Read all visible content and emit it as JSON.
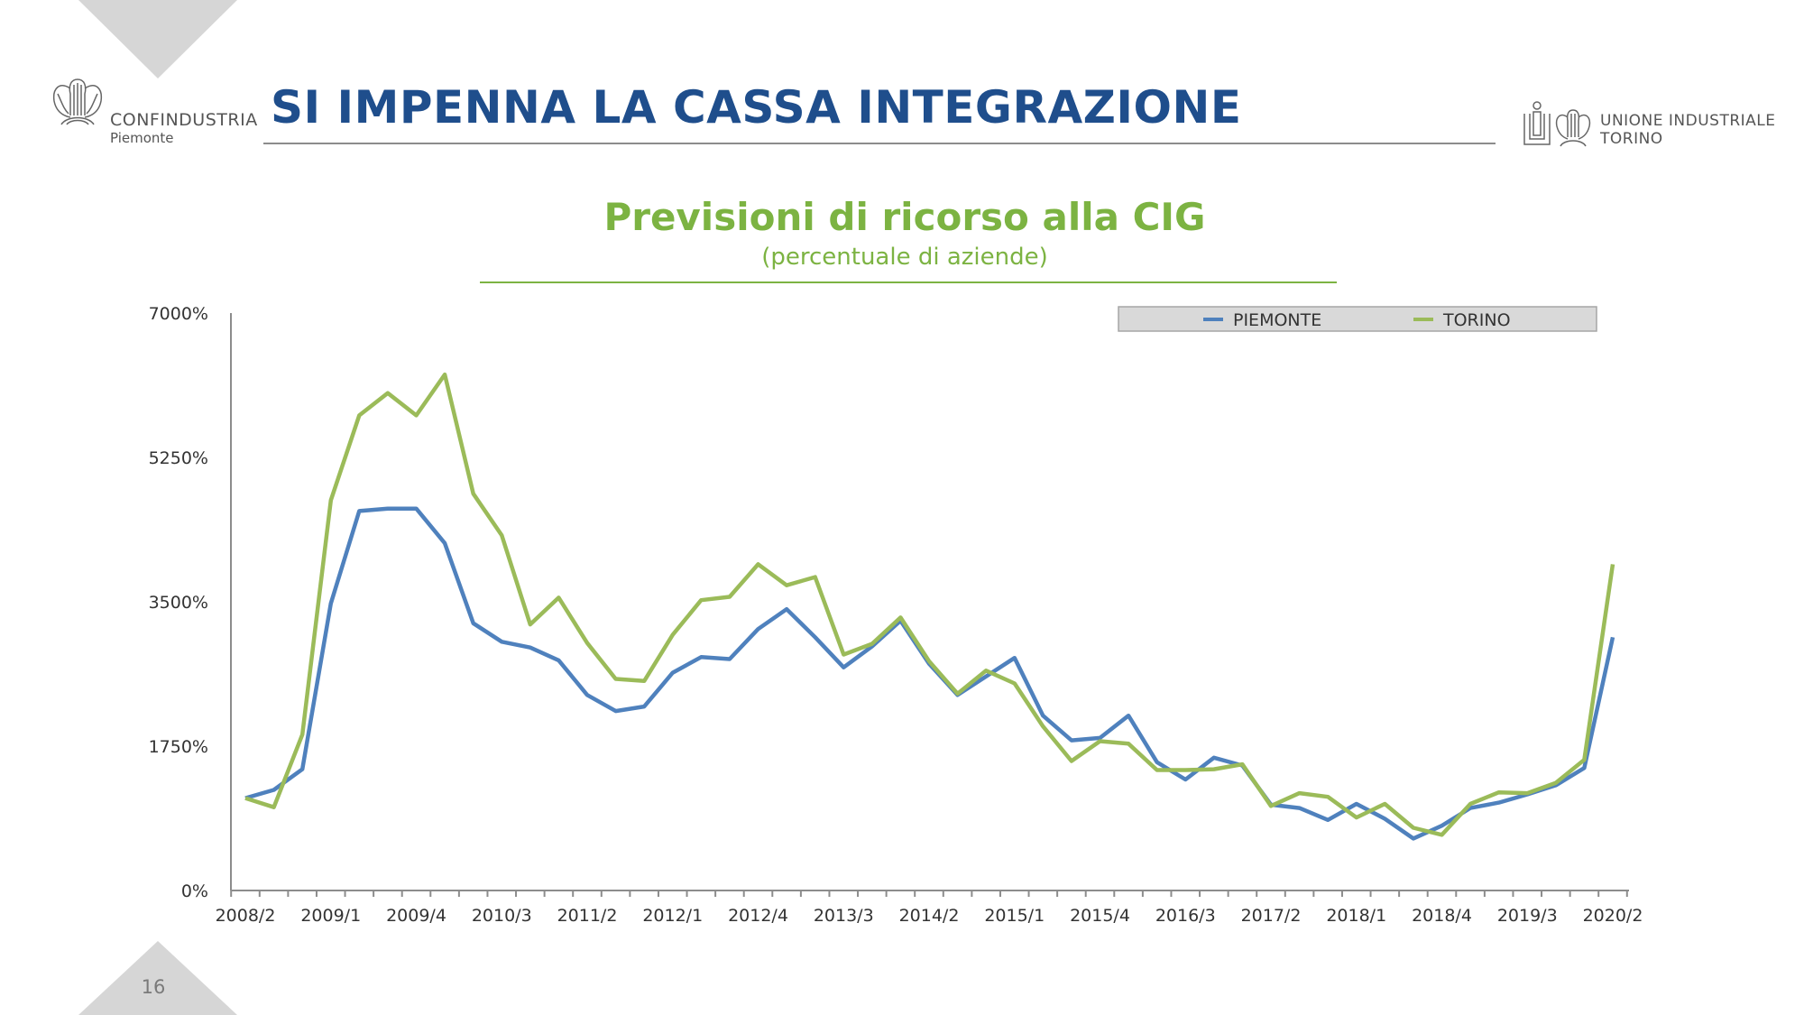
{
  "header": {
    "title": "SI IMPENNA LA CASSA INTEGRAZIONE",
    "logo_left": {
      "brand": "CONFINDUSTRIA",
      "region": "Piemonte"
    },
    "logo_right": {
      "line1": "UNIONE INDUSTRIALE",
      "line2": "TORINO"
    }
  },
  "footer": {
    "page_number": "16"
  },
  "colors": {
    "title_blue": "#1f4e8c",
    "accent_green": "#7cb342",
    "piemonte": "#4f81bd",
    "torino": "#9bbb59"
  },
  "chart_data": {
    "type": "line",
    "title": "Previsioni di ricorso alla CIG",
    "subtitle": "(percentuale di aziende)",
    "xlabel": "",
    "ylabel": "",
    "ylim": [
      0,
      7000
    ],
    "yticks": [
      "0%",
      "1750%",
      "3500%",
      "5250%",
      "7000%"
    ],
    "ytick_values": [
      0,
      1750,
      3500,
      5250,
      7000
    ],
    "x_tick_labels": [
      "2008/2",
      "2009/1",
      "2009/4",
      "2010/3",
      "2011/2",
      "2012/1",
      "2012/4",
      "2013/3",
      "2014/2",
      "2015/1",
      "2015/4",
      "2016/3",
      "2017/2",
      "2018/1",
      "2018/4",
      "2019/3",
      "2020/2"
    ],
    "x_label_every": 3,
    "x_count": 49,
    "legend_position": "top-right",
    "series": [
      {
        "name": "PIEMONTE",
        "color": "#4f81bd",
        "values": [
          1120,
          1220,
          1470,
          3480,
          4600,
          4630,
          4630,
          4210,
          3240,
          3015,
          2945,
          2790,
          2370,
          2175,
          2230,
          2640,
          2830,
          2805,
          3170,
          3410,
          3070,
          2705,
          2960,
          3270,
          2750,
          2370,
          2595,
          2820,
          2120,
          1820,
          1850,
          2120,
          1555,
          1345,
          1610,
          1515,
          1040,
          1000,
          855,
          1050,
          870,
          630,
          785,
          1000,
          1065,
          1165,
          1275,
          1485,
          3070
        ]
      },
      {
        "name": "TORINO",
        "color": "#9bbb59",
        "values": [
          1120,
          1010,
          1890,
          4730,
          5760,
          6030,
          5760,
          6255,
          4810,
          4305,
          3225,
          3550,
          3000,
          2565,
          2540,
          3100,
          3520,
          3560,
          3955,
          3700,
          3800,
          2860,
          2990,
          3310,
          2780,
          2385,
          2665,
          2510,
          1990,
          1570,
          1810,
          1780,
          1460,
          1460,
          1470,
          1530,
          1025,
          1180,
          1135,
          885,
          1050,
          760,
          675,
          1050,
          1190,
          1180,
          1305,
          1585,
          3955
        ]
      }
    ]
  }
}
